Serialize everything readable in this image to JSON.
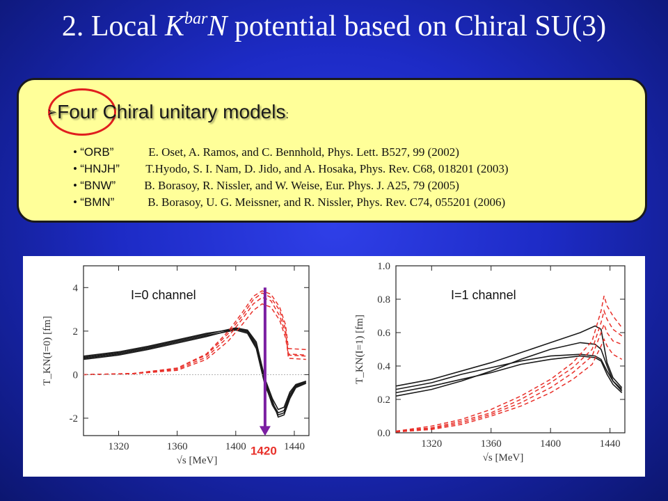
{
  "title": {
    "prefix": "2. Local ",
    "k": "K",
    "sup": "bar",
    "n": "N",
    "suffix": " potential based on Chiral SU(3)"
  },
  "models": {
    "heading": "Four Chiral unitary models",
    "colon": ":",
    "items": [
      {
        "name": "“ORB”",
        "ref": "E. Oset, A. Ramos, and C. Bennhold, Phys. Lett. B527, 99 (2002)"
      },
      {
        "name": "“HNJH”",
        "ref": "T.Hyodo, S. I. Nam, D. Jido, and A. Hosaka, Phys. Rev. C68, 018201 (2003)"
      },
      {
        "name": "“BNW”",
        "ref": "B. Borasoy, R. Nissler, and W. Weise, Eur. Phys. J. A25, 79 (2005)"
      },
      {
        "name": "“BMN”",
        "ref": "B. Borasoy, U. G. Meissner, and R. Nissler, Phys. Rev. C74, 055201 (2006)"
      }
    ]
  },
  "colors": {
    "solid": "#1a1a1a",
    "dashed": "#e8302a",
    "marker": "#7b1fa2",
    "marker_label": "#e8302a",
    "circle": "#e01e1e"
  },
  "marker_label": "1420",
  "chart_data": [
    {
      "type": "line",
      "annotation": "I=0 channel",
      "xlabel": "√s [MeV]",
      "ylabel": "T_KN(I=0) [fm]",
      "xlim": [
        1296,
        1450
      ],
      "ylim": [
        -2.8,
        5.0
      ],
      "xticks": [
        1320,
        1360,
        1400,
        1440
      ],
      "yticks": [
        -2,
        0,
        2,
        4
      ],
      "series": [
        {
          "style": "solid",
          "points": [
            [
              1296,
              0.75
            ],
            [
              1320,
              0.95
            ],
            [
              1340,
              1.2
            ],
            [
              1360,
              1.5
            ],
            [
              1380,
              1.8
            ],
            [
              1400,
              2.05
            ],
            [
              1408,
              1.9
            ],
            [
              1414,
              1.2
            ],
            [
              1420,
              -0.5
            ],
            [
              1425,
              -1.3
            ],
            [
              1429,
              -1.75
            ],
            [
              1433,
              -1.65
            ],
            [
              1437,
              -0.9
            ],
            [
              1441,
              -0.5
            ],
            [
              1448,
              -0.3
            ]
          ]
        },
        {
          "style": "solid",
          "points": [
            [
              1296,
              0.85
            ],
            [
              1320,
              1.05
            ],
            [
              1340,
              1.3
            ],
            [
              1360,
              1.6
            ],
            [
              1380,
              1.9
            ],
            [
              1400,
              2.1
            ],
            [
              1408,
              1.95
            ],
            [
              1414,
              1.3
            ],
            [
              1420,
              -0.4
            ],
            [
              1425,
              -1.4
            ],
            [
              1429,
              -1.85
            ],
            [
              1433,
              -1.75
            ],
            [
              1437,
              -1.0
            ],
            [
              1441,
              -0.55
            ],
            [
              1448,
              -0.35
            ]
          ]
        },
        {
          "style": "solid",
          "points": [
            [
              1296,
              0.7
            ],
            [
              1320,
              0.9
            ],
            [
              1340,
              1.15
            ],
            [
              1360,
              1.45
            ],
            [
              1380,
              1.75
            ],
            [
              1400,
              2.1
            ],
            [
              1408,
              2.0
            ],
            [
              1414,
              1.4
            ],
            [
              1420,
              -0.3
            ],
            [
              1425,
              -1.2
            ],
            [
              1429,
              -1.95
            ],
            [
              1433,
              -1.85
            ],
            [
              1437,
              -1.1
            ],
            [
              1441,
              -0.6
            ],
            [
              1448,
              -0.4
            ]
          ]
        },
        {
          "style": "solid",
          "points": [
            [
              1296,
              0.8
            ],
            [
              1320,
              1.0
            ],
            [
              1340,
              1.25
            ],
            [
              1360,
              1.55
            ],
            [
              1380,
              1.85
            ],
            [
              1400,
              2.15
            ],
            [
              1408,
              2.05
            ],
            [
              1414,
              1.5
            ],
            [
              1420,
              -0.2
            ],
            [
              1425,
              -1.1
            ],
            [
              1429,
              -1.6
            ],
            [
              1433,
              -1.5
            ],
            [
              1437,
              -0.8
            ],
            [
              1441,
              -0.45
            ],
            [
              1448,
              -0.3
            ]
          ]
        },
        {
          "style": "dashed",
          "points": [
            [
              1296,
              0.0
            ],
            [
              1330,
              0.05
            ],
            [
              1360,
              0.3
            ],
            [
              1380,
              0.95
            ],
            [
              1395,
              2.0
            ],
            [
              1405,
              2.9
            ],
            [
              1412,
              3.6
            ],
            [
              1418,
              3.85
            ],
            [
              1424,
              3.7
            ],
            [
              1430,
              3.1
            ],
            [
              1434,
              2.3
            ],
            [
              1436,
              1.2
            ],
            [
              1448,
              1.15
            ]
          ]
        },
        {
          "style": "dashed",
          "points": [
            [
              1296,
              0.0
            ],
            [
              1330,
              0.05
            ],
            [
              1360,
              0.25
            ],
            [
              1380,
              0.8
            ],
            [
              1395,
              1.75
            ],
            [
              1405,
              2.6
            ],
            [
              1412,
              3.25
            ],
            [
              1418,
              3.55
            ],
            [
              1424,
              3.4
            ],
            [
              1430,
              2.7
            ],
            [
              1434,
              1.9
            ],
            [
              1436,
              0.95
            ],
            [
              1448,
              0.9
            ]
          ]
        },
        {
          "style": "dashed",
          "points": [
            [
              1296,
              0.0
            ],
            [
              1330,
              0.05
            ],
            [
              1360,
              0.3
            ],
            [
              1380,
              0.9
            ],
            [
              1395,
              1.9
            ],
            [
              1405,
              2.75
            ],
            [
              1412,
              3.45
            ],
            [
              1418,
              3.75
            ],
            [
              1424,
              3.55
            ],
            [
              1430,
              2.95
            ],
            [
              1434,
              2.1
            ],
            [
              1436,
              0.75
            ],
            [
              1448,
              0.7
            ]
          ]
        },
        {
          "style": "dashed",
          "points": [
            [
              1296,
              0.0
            ],
            [
              1330,
              0.04
            ],
            [
              1360,
              0.2
            ],
            [
              1380,
              0.7
            ],
            [
              1395,
              1.55
            ],
            [
              1405,
              2.35
            ],
            [
              1412,
              2.95
            ],
            [
              1418,
              3.25
            ],
            [
              1424,
              3.1
            ],
            [
              1430,
              2.5
            ],
            [
              1434,
              1.7
            ],
            [
              1436,
              0.9
            ],
            [
              1448,
              0.85
            ]
          ]
        },
        {
          "style": "thin",
          "points": [
            [
              1296,
              0.0
            ],
            [
              1448,
              0.0
            ]
          ]
        }
      ],
      "marker": {
        "x": 1420,
        "y_top": 4.0,
        "y_bottom": -2.75
      }
    },
    {
      "type": "line",
      "annotation": "I=1 channel",
      "xlabel": "√s [MeV]",
      "ylabel": "T_KN(I=1) [fm]",
      "xlim": [
        1296,
        1450
      ],
      "ylim": [
        0.0,
        1.0
      ],
      "xticks": [
        1320,
        1360,
        1400,
        1440
      ],
      "yticks": [
        0.0,
        0.2,
        0.4,
        0.6,
        0.8,
        1.0
      ],
      "ytick_labels": [
        "0.0",
        "0.2",
        "0.4",
        "0.6",
        "0.8",
        "1.0"
      ],
      "series": [
        {
          "style": "solid",
          "points": [
            [
              1296,
              0.28
            ],
            [
              1320,
              0.32
            ],
            [
              1340,
              0.37
            ],
            [
              1360,
              0.42
            ],
            [
              1380,
              0.48
            ],
            [
              1400,
              0.54
            ],
            [
              1420,
              0.6
            ],
            [
              1430,
              0.64
            ],
            [
              1434,
              0.62
            ],
            [
              1438,
              0.42
            ],
            [
              1442,
              0.33
            ],
            [
              1448,
              0.27
            ]
          ]
        },
        {
          "style": "solid",
          "points": [
            [
              1296,
              0.26
            ],
            [
              1320,
              0.3
            ],
            [
              1340,
              0.35
            ],
            [
              1360,
              0.39
            ],
            [
              1380,
              0.43
            ],
            [
              1400,
              0.46
            ],
            [
              1420,
              0.47
            ],
            [
              1430,
              0.46
            ],
            [
              1434,
              0.44
            ],
            [
              1438,
              0.37
            ],
            [
              1442,
              0.31
            ],
            [
              1448,
              0.25
            ]
          ]
        },
        {
          "style": "solid",
          "points": [
            [
              1296,
              0.24
            ],
            [
              1320,
              0.28
            ],
            [
              1340,
              0.32
            ],
            [
              1360,
              0.36
            ],
            [
              1380,
              0.41
            ],
            [
              1400,
              0.44
            ],
            [
              1420,
              0.46
            ],
            [
              1430,
              0.45
            ],
            [
              1434,
              0.43
            ],
            [
              1438,
              0.35
            ],
            [
              1442,
              0.29
            ],
            [
              1448,
              0.24
            ]
          ]
        },
        {
          "style": "solid",
          "points": [
            [
              1296,
              0.22
            ],
            [
              1320,
              0.26
            ],
            [
              1340,
              0.31
            ],
            [
              1360,
              0.37
            ],
            [
              1380,
              0.44
            ],
            [
              1400,
              0.5
            ],
            [
              1420,
              0.54
            ],
            [
              1430,
              0.53
            ],
            [
              1434,
              0.5
            ],
            [
              1438,
              0.4
            ],
            [
              1442,
              0.31
            ],
            [
              1448,
              0.26
            ]
          ]
        },
        {
          "style": "dashed",
          "points": [
            [
              1296,
              0.01
            ],
            [
              1320,
              0.04
            ],
            [
              1340,
              0.08
            ],
            [
              1360,
              0.14
            ],
            [
              1380,
              0.22
            ],
            [
              1400,
              0.32
            ],
            [
              1415,
              0.42
            ],
            [
              1428,
              0.55
            ],
            [
              1434,
              0.73
            ],
            [
              1436,
              0.82
            ],
            [
              1438,
              0.76
            ],
            [
              1442,
              0.7
            ],
            [
              1448,
              0.63
            ]
          ]
        },
        {
          "style": "dashed",
          "points": [
            [
              1296,
              0.01
            ],
            [
              1320,
              0.03
            ],
            [
              1340,
              0.07
            ],
            [
              1360,
              0.12
            ],
            [
              1380,
              0.2
            ],
            [
              1400,
              0.3
            ],
            [
              1415,
              0.39
            ],
            [
              1428,
              0.5
            ],
            [
              1434,
              0.66
            ],
            [
              1436,
              0.73
            ],
            [
              1438,
              0.68
            ],
            [
              1442,
              0.62
            ],
            [
              1448,
              0.58
            ]
          ]
        },
        {
          "style": "dashed",
          "points": [
            [
              1296,
              0.005
            ],
            [
              1320,
              0.025
            ],
            [
              1340,
              0.06
            ],
            [
              1360,
              0.11
            ],
            [
              1380,
              0.18
            ],
            [
              1400,
              0.27
            ],
            [
              1415,
              0.36
            ],
            [
              1428,
              0.46
            ],
            [
              1434,
              0.6
            ],
            [
              1436,
              0.65
            ],
            [
              1438,
              0.6
            ],
            [
              1442,
              0.55
            ],
            [
              1448,
              0.53
            ]
          ]
        },
        {
          "style": "dashed",
          "points": [
            [
              1296,
              0.005
            ],
            [
              1320,
              0.02
            ],
            [
              1340,
              0.05
            ],
            [
              1360,
              0.1
            ],
            [
              1380,
              0.16
            ],
            [
              1400,
              0.24
            ],
            [
              1415,
              0.32
            ],
            [
              1428,
              0.41
            ],
            [
              1434,
              0.52
            ],
            [
              1436,
              0.56
            ],
            [
              1438,
              0.52
            ],
            [
              1442,
              0.47
            ],
            [
              1448,
              0.44
            ]
          ]
        }
      ]
    }
  ]
}
